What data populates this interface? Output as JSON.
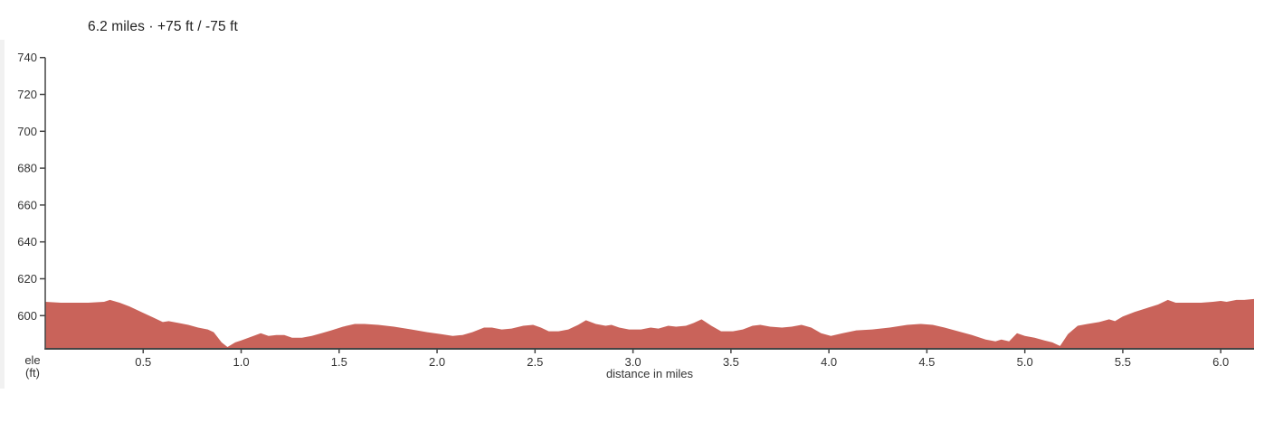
{
  "header": {
    "title": "6.2 miles · +75 ft / -75 ft"
  },
  "chart_data": {
    "type": "area",
    "title": "6.2 miles · +75 ft / -75 ft",
    "stats": {
      "distance": "6.2 miles",
      "ascent": "+75 ft",
      "descent": "-75 ft"
    },
    "xlabel": "distance in miles",
    "ylabel": "ele (ft)",
    "ylabel_lines": [
      "ele",
      "(ft)"
    ],
    "xlim": [
      0,
      6.17
    ],
    "ylim": [
      582,
      740
    ],
    "xticks": [
      0.5,
      1.0,
      1.5,
      2.0,
      2.5,
      3.0,
      3.5,
      4.0,
      4.5,
      5.0,
      5.5,
      6.0
    ],
    "xtick_labels": [
      "0.5",
      "1.0",
      "1.5",
      "2.0",
      "2.5",
      "3.0",
      "3.5",
      "4.0",
      "4.5",
      "5.0",
      "5.5",
      "6.0"
    ],
    "yticks": [
      600,
      620,
      640,
      660,
      680,
      700,
      720,
      740
    ],
    "ytick_labels": [
      "600",
      "620",
      "640",
      "660",
      "680",
      "700",
      "720",
      "740"
    ],
    "grid": false,
    "legend": null,
    "colors": {
      "fill": "#c9635a",
      "axis": "#444444",
      "tick_label": "#333333",
      "title": "#222222",
      "panel_edge": "#f1f1f1"
    },
    "series": [
      {
        "name": "elevation",
        "x": [
          0.0,
          0.08,
          0.15,
          0.22,
          0.3,
          0.33,
          0.38,
          0.43,
          0.5,
          0.55,
          0.6,
          0.63,
          0.68,
          0.73,
          0.78,
          0.83,
          0.86,
          0.9,
          0.93,
          0.97,
          1.0,
          1.05,
          1.1,
          1.14,
          1.18,
          1.22,
          1.26,
          1.31,
          1.36,
          1.41,
          1.46,
          1.52,
          1.58,
          1.63,
          1.7,
          1.78,
          1.87,
          1.95,
          2.02,
          2.08,
          2.13,
          2.18,
          2.24,
          2.28,
          2.33,
          2.38,
          2.44,
          2.49,
          2.53,
          2.57,
          2.62,
          2.67,
          2.72,
          2.76,
          2.81,
          2.86,
          2.89,
          2.93,
          2.98,
          3.04,
          3.09,
          3.13,
          3.18,
          3.22,
          3.27,
          3.31,
          3.35,
          3.4,
          3.45,
          3.51,
          3.56,
          3.61,
          3.65,
          3.7,
          3.76,
          3.81,
          3.86,
          3.91,
          3.96,
          4.01,
          4.07,
          4.14,
          4.22,
          4.31,
          4.4,
          4.47,
          4.53,
          4.59,
          4.66,
          4.73,
          4.8,
          4.85,
          4.88,
          4.92,
          4.96,
          5.0,
          5.05,
          5.1,
          5.14,
          5.18,
          5.22,
          5.27,
          5.32,
          5.38,
          5.43,
          5.46,
          5.5,
          5.56,
          5.62,
          5.68,
          5.73,
          5.77,
          5.83,
          5.9,
          5.96,
          6.0,
          6.03,
          6.08,
          6.12,
          6.17
        ],
        "y": [
          607.5,
          607,
          607,
          607,
          607.5,
          608.5,
          607,
          605,
          601.5,
          599,
          596.5,
          597,
          596,
          595,
          593.5,
          592.5,
          591,
          585.5,
          583,
          585.5,
          586.5,
          588.5,
          590.5,
          589,
          589.5,
          589.5,
          588,
          588,
          589,
          590.5,
          592,
          594,
          595.5,
          595.5,
          595,
          594,
          592.5,
          591,
          590,
          589,
          589.5,
          591,
          593.5,
          593.5,
          592.5,
          593,
          594.5,
          595,
          593.5,
          591.5,
          591.5,
          592.5,
          595,
          597.5,
          595.5,
          594.5,
          595,
          593.5,
          592.5,
          592.5,
          593.5,
          593,
          594.5,
          594,
          594.5,
          596,
          598,
          594.5,
          591.5,
          591.5,
          592.5,
          594.5,
          595,
          594,
          593.5,
          594,
          595,
          593.5,
          590.5,
          589,
          590.5,
          592,
          592.5,
          593.5,
          595,
          595.5,
          595,
          593.5,
          591.5,
          589.5,
          587,
          586,
          587,
          586,
          590.5,
          589,
          588,
          586.5,
          585.5,
          583.5,
          590,
          594.5,
          595.5,
          596.5,
          598,
          597,
          599.5,
          602,
          604,
          606,
          608.5,
          607,
          607,
          607,
          607.5,
          608,
          607.5,
          608.5,
          608.5,
          609
        ]
      }
    ]
  }
}
